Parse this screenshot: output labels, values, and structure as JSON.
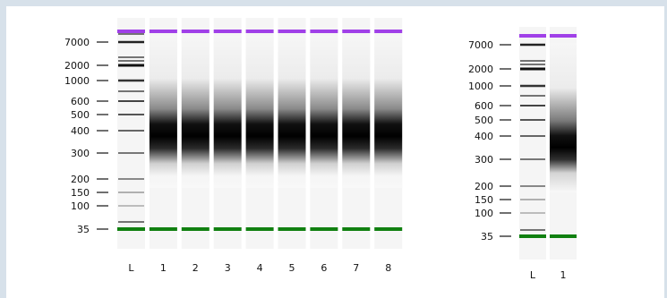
{
  "gel_left": {
    "ladder_sizes": [
      "7000",
      "2000",
      "1000",
      "600",
      "500",
      "400",
      "300",
      "200",
      "150",
      "100",
      "35"
    ],
    "lane_labels": [
      "L",
      "1",
      "2",
      "3",
      "4",
      "5",
      "6",
      "7",
      "8"
    ]
  },
  "gel_right": {
    "ladder_sizes": [
      "7000",
      "2000",
      "1000",
      "600",
      "500",
      "400",
      "300",
      "200",
      "150",
      "100",
      "35"
    ],
    "lane_labels": [
      "L",
      "1"
    ]
  },
  "colors": {
    "upper_marker": "#a040e8",
    "lower_marker": "#108010",
    "band": "#000000",
    "lane_bg": "#f5f5f5"
  }
}
